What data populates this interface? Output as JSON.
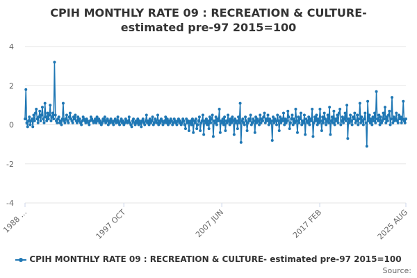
{
  "chart_data": {
    "type": "line",
    "title_line1": "CPIH MONTHLY RATE 09 : RECREATION & CULTURE-",
    "title_line2": "estimated pre-97 2015=100",
    "xlabel": "",
    "ylabel": "",
    "ylim": [
      -4,
      4
    ],
    "yticks": [
      "4",
      "2",
      "0",
      "-2",
      "-4"
    ],
    "ytick_values": [
      4,
      2,
      0,
      -2,
      -4
    ],
    "x_range_months": [
      0,
      451
    ],
    "xticks": [
      {
        "label": "1988 ...",
        "month_index": 0
      },
      {
        "label": "1997 OCT",
        "month_index": 117
      },
      {
        "label": "2007 JUN",
        "month_index": 233
      },
      {
        "label": "2017 FEB",
        "month_index": 349
      },
      {
        "label": "2025 AUG",
        "month_index": 451
      }
    ],
    "series": [
      {
        "name": "CPIH MONTHLY RATE 09 : RECREATION & CULTURE- estimated pre-97 2015=100",
        "color": "#1f77b4",
        "values": [
          0.3,
          1.8,
          0.1,
          -0.1,
          0.2,
          0.4,
          0.0,
          0.2,
          0.3,
          -0.1,
          0.5,
          0.2,
          0.6,
          0.8,
          0.3,
          0.1,
          0.4,
          0.7,
          0.2,
          0.5,
          0.9,
          0.3,
          0.1,
          1.1,
          0.4,
          0.2,
          0.6,
          0.3,
          0.5,
          1.0,
          0.2,
          0.4,
          0.6,
          0.3,
          3.2,
          0.5,
          0.2,
          0.1,
          0.3,
          0.4,
          0.1,
          0.2,
          0.0,
          0.3,
          1.1,
          0.2,
          0.1,
          0.3,
          0.5,
          0.2,
          0.1,
          0.4,
          0.6,
          0.3,
          0.2,
          0.1,
          0.4,
          0.3,
          0.5,
          0.2,
          0.1,
          0.4,
          0.2,
          0.3,
          0.1,
          0.0,
          0.2,
          0.4,
          0.3,
          0.2,
          0.1,
          0.3,
          0.2,
          0.1,
          0.0,
          0.2,
          0.4,
          0.3,
          0.2,
          0.1,
          0.2,
          0.3,
          0.1,
          0.4,
          0.2,
          0.3,
          0.1,
          0.2,
          0.0,
          0.1,
          0.3,
          0.2,
          0.4,
          0.1,
          0.2,
          0.3,
          0.0,
          0.2,
          0.1,
          0.3,
          0.2,
          0.1,
          0.0,
          0.2,
          0.3,
          0.1,
          0.2,
          0.4,
          0.1,
          0.0,
          0.2,
          0.3,
          0.1,
          0.2,
          0.0,
          0.1,
          0.3,
          0.2,
          0.1,
          0.2,
          0.4,
          0.1,
          0.0,
          -0.1,
          0.2,
          0.3,
          0.1,
          0.0,
          0.2,
          0.1,
          0.3,
          0.0,
          0.2,
          0.1,
          -0.1,
          0.2,
          0.3,
          0.1,
          0.0,
          0.2,
          0.5,
          0.1,
          0.2,
          0.0,
          0.3,
          0.1,
          0.2,
          0.4,
          0.0,
          0.1,
          0.3,
          0.2,
          0.1,
          0.5,
          0.0,
          0.2,
          0.1,
          0.3,
          0.2,
          0.0,
          0.1,
          0.2,
          0.4,
          0.1,
          0.3,
          0.0,
          0.2,
          0.1,
          0.3,
          0.2,
          0.0,
          0.1,
          0.3,
          0.2,
          0.1,
          0.0,
          0.2,
          0.3,
          0.1,
          0.2,
          0.0,
          0.1,
          0.3,
          0.2,
          0.0,
          -0.2,
          0.3,
          0.1,
          0.2,
          -0.3,
          0.1,
          0.2,
          0.0,
          0.3,
          -0.4,
          0.2,
          0.1,
          0.3,
          -0.2,
          0.0,
          0.2,
          0.4,
          -0.3,
          0.1,
          0.2,
          0.5,
          -0.5,
          0.2,
          0.1,
          0.3,
          0.0,
          0.2,
          -0.2,
          0.4,
          0.1,
          0.3,
          0.5,
          -0.6,
          0.2,
          0.1,
          0.4,
          0.0,
          0.3,
          0.2,
          0.8,
          -0.4,
          0.2,
          0.1,
          0.3,
          0.0,
          0.4,
          -0.3,
          0.2,
          0.1,
          0.5,
          0.2,
          0.0,
          0.3,
          0.1,
          0.4,
          0.2,
          -0.5,
          0.3,
          0.1,
          0.2,
          -0.2,
          0.4,
          0.1,
          1.1,
          -0.9,
          0.2,
          0.3,
          0.1,
          0.0,
          0.4,
          0.2,
          -0.3,
          0.1,
          0.3,
          0.2,
          0.5,
          0.0,
          0.1,
          0.3,
          0.2,
          -0.4,
          0.4,
          0.1,
          0.3,
          0.2,
          0.0,
          0.5,
          0.1,
          0.3,
          0.2,
          0.4,
          0.6,
          0.1,
          0.3,
          0.2,
          0.5,
          0.0,
          0.3,
          0.1,
          0.2,
          -0.8,
          0.4,
          0.1,
          0.3,
          0.2,
          0.0,
          0.5,
          0.2,
          -0.3,
          0.4,
          0.1,
          0.3,
          0.2,
          0.6,
          0.0,
          0.3,
          0.1,
          0.2,
          0.7,
          0.4,
          -0.2,
          0.1,
          0.3,
          0.5,
          0.0,
          0.3,
          0.1,
          0.8,
          0.2,
          -0.4,
          0.4,
          0.1,
          0.3,
          0.6,
          0.0,
          0.2,
          0.1,
          0.5,
          -0.5,
          0.3,
          0.2,
          0.1,
          0.4,
          0.0,
          0.3,
          0.2,
          0.8,
          -0.6,
          0.1,
          0.4,
          0.2,
          0.5,
          0.0,
          0.3,
          0.1,
          0.8,
          0.2,
          -0.3,
          0.4,
          0.1,
          0.6,
          0.3,
          0.0,
          0.2,
          0.5,
          0.1,
          0.9,
          -0.5,
          0.2,
          0.4,
          0.1,
          0.7,
          0.0,
          0.3,
          0.2,
          0.5,
          0.1,
          0.6,
          0.8,
          0.0,
          0.2,
          0.4,
          0.1,
          0.3,
          0.6,
          0.2,
          1.0,
          -0.7,
          0.3,
          0.1,
          0.5,
          0.2,
          0.0,
          0.4,
          0.3,
          0.6,
          0.1,
          0.2,
          0.5,
          0.0,
          0.3,
          1.1,
          0.1,
          0.4,
          0.2,
          0.0,
          0.3,
          0.6,
          0.1,
          -1.1,
          1.2,
          0.2,
          0.5,
          0.1,
          0.3,
          0.0,
          0.4,
          0.2,
          0.6,
          0.1,
          1.7,
          0.3,
          0.2,
          0.5,
          0.0,
          0.4,
          0.1,
          0.2,
          0.6,
          0.3,
          0.9,
          0.1,
          0.4,
          0.2,
          0.5,
          0.7,
          0.0,
          0.3,
          1.4,
          0.1,
          0.4,
          0.2,
          0.3,
          0.6,
          0.2,
          0.1,
          0.5,
          0.3,
          0.4,
          0.1,
          0.3,
          1.2,
          0.2,
          0.1,
          0.3
        ]
      }
    ],
    "legend_label": "CPIH MONTHLY RATE 09 : RECREATION & CULTURE- estimated pre-97 2015=100",
    "legend_position": "bottom-center",
    "grid": true
  },
  "source_label": "Source:",
  "colors": {
    "line": "#1f77b4",
    "grid": "#e6e6e6",
    "axis_text": "#666666",
    "title": "#333333"
  }
}
